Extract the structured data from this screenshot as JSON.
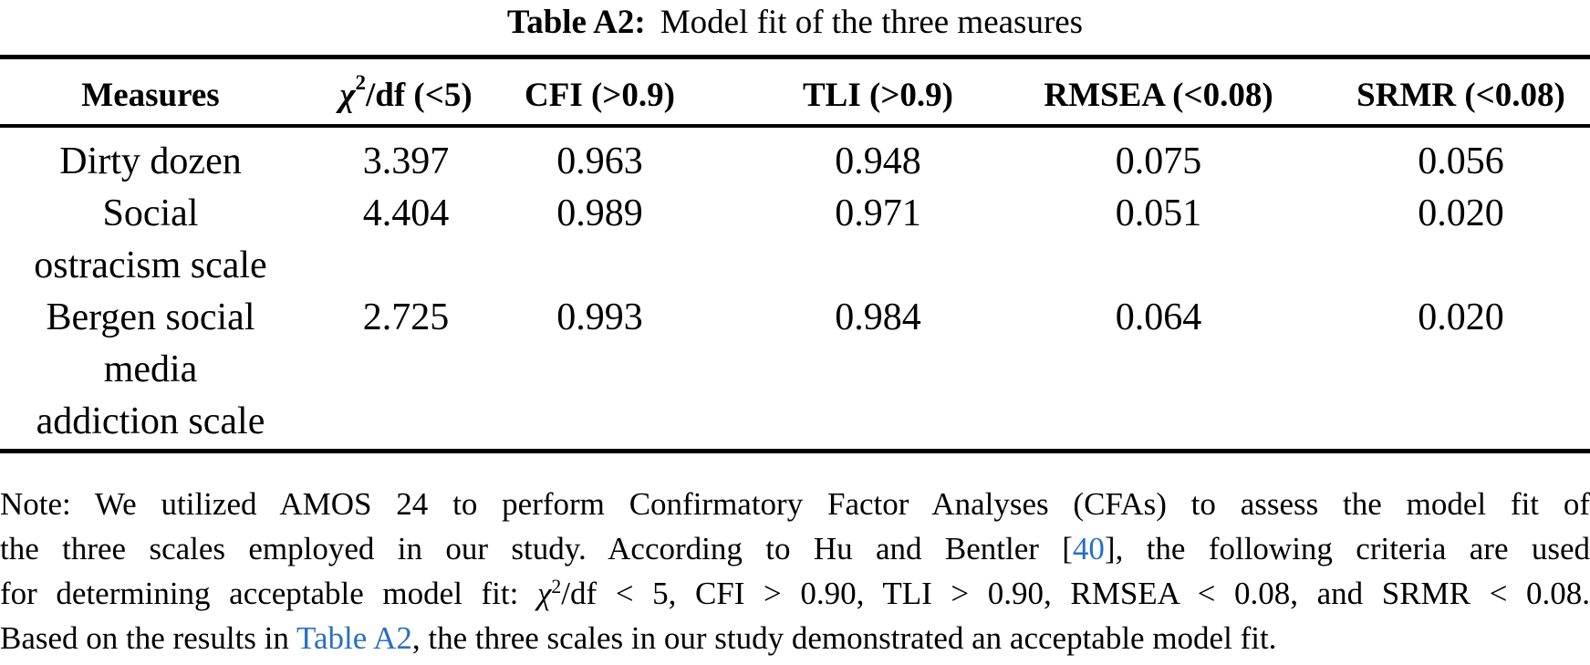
{
  "caption": {
    "label": "Table A2:",
    "text": "Model fit of the three measures"
  },
  "table": {
    "columns": [
      {
        "key": "measures",
        "label": "Measures"
      },
      {
        "key": "chi2_df",
        "chi": "χ",
        "sup": "2",
        "rest": "/df (<5)"
      },
      {
        "key": "cfi",
        "label": "CFI (>0.9)"
      },
      {
        "key": "tli",
        "label": "TLI (>0.9)"
      },
      {
        "key": "rmsea",
        "label": "RMSEA (<0.08)"
      },
      {
        "key": "srmr",
        "label": "SRMR (<0.08)"
      }
    ],
    "rows": [
      {
        "measure": "Dirty dozen",
        "label_lines": [
          "Dirty dozen"
        ],
        "values": [
          "3.397",
          "0.963",
          "0.948",
          "0.075",
          "0.056"
        ]
      },
      {
        "measure": "Social ostracism scale",
        "label_lines": [
          "Social",
          "ostracism scale"
        ],
        "values": [
          "4.404",
          "0.989",
          "0.971",
          "0.051",
          "0.020"
        ]
      },
      {
        "measure": "Bergen social media addiction scale",
        "label_lines": [
          "Bergen social",
          "media",
          "addiction scale"
        ],
        "values": [
          "2.725",
          "0.993",
          "0.984",
          "0.064",
          "0.020"
        ]
      }
    ]
  },
  "note": {
    "line1": "Note: We utilized AMOS 24 to perform Confirmatory Factor Analyses (CFAs) to assess the model fit of",
    "line2_pre": "the three scales employed in our study. According to Hu and Bentler [",
    "line2_link": "40",
    "line2_post": "], the following criteria are used",
    "line3_pre": "for determining acceptable model fit: ",
    "line3_chi": "χ",
    "line3_sup": "2",
    "line3_post": "/df < 5, CFI > 0.90, TLI > 0.90, RMSEA < 0.08, and SRMR < 0.08.",
    "line4_pre": "Based on the results in ",
    "line4_link": "Table A2",
    "line4_post": ", the three scales in our study demonstrated an acceptable model fit."
  },
  "colors": {
    "text": "#000000",
    "link_blue": "#2a6fc4",
    "background": "#ffffff"
  }
}
